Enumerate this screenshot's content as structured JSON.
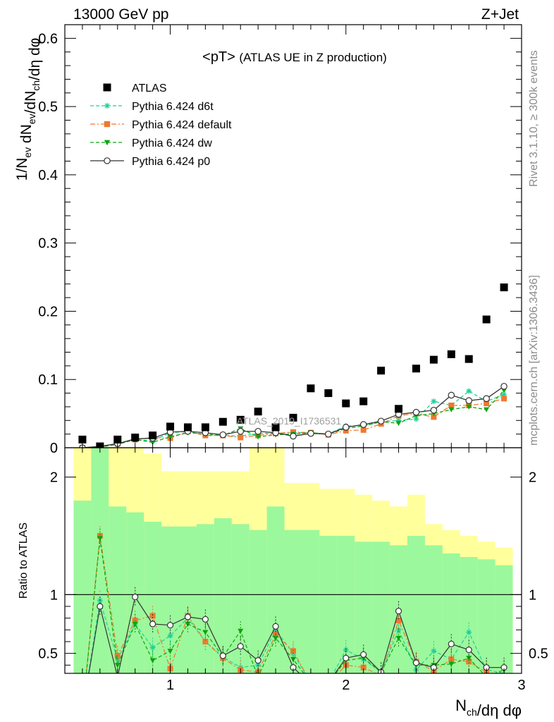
{
  "header": {
    "left_title": "13000 GeV pp",
    "right_title": "Z+Jet"
  },
  "side_labels": {
    "rivet": "Rivet 3.1.10, ≥ 300k events",
    "mcplots": "mcplots.cern.ch [arXiv:1306.3436]"
  },
  "watermark": "ATLAS_2019_I1736531",
  "chart_data": [
    {
      "type": "scatter",
      "panel": "main",
      "title": "<pT> (ATLAS UE in Z production)",
      "xlabel": "N_ch/dη dφ",
      "ylabel": "1/N_ev dN_ev/dN_ch/dη dφ",
      "xlim": [
        0.4,
        3.0
      ],
      "ylim": [
        0,
        0.62
      ],
      "yticks": [
        0,
        0.1,
        0.2,
        0.3,
        0.4,
        0.5,
        0.6
      ],
      "ytick_labels": [
        "0",
        "0.1",
        "0.2",
        "0.3",
        "0.4",
        "0.5",
        "0.6"
      ],
      "grid": false,
      "legend_position": "top-left",
      "x": [
        0.5,
        0.6,
        0.7,
        0.8,
        0.9,
        1.0,
        1.1,
        1.2,
        1.3,
        1.4,
        1.5,
        1.6,
        1.7,
        1.8,
        1.9,
        2.0,
        2.1,
        2.2,
        2.3,
        2.4,
        2.5,
        2.6,
        2.7,
        2.8,
        2.9
      ],
      "series": [
        {
          "name": "ATLAS",
          "color": "#000000",
          "marker": "square",
          "line": "none",
          "values": [
            0.012,
            0.002,
            0.012,
            0.015,
            0.018,
            0.031,
            0.03,
            0.03,
            0.038,
            0.041,
            0.053,
            0.03,
            0.044,
            0.087,
            0.08,
            0.065,
            0.068,
            0.113,
            0.057,
            0.116,
            0.129,
            0.137,
            0.13,
            0.188,
            0.235
          ]
        },
        {
          "name": "Pythia 6.424 d6t",
          "color": "#1fcf9a",
          "marker": "star",
          "line": "dashed",
          "values": [
            0.0,
            0.001,
            0.005,
            0.012,
            0.01,
            0.022,
            0.024,
            0.018,
            0.018,
            0.017,
            0.021,
            0.021,
            0.022,
            0.022,
            0.02,
            0.032,
            0.032,
            0.038,
            0.04,
            0.042,
            0.068,
            0.062,
            0.083,
            0.068,
            0.078
          ]
        },
        {
          "name": "Pythia 6.424 default",
          "color": "#f07830",
          "marker": "square",
          "line": "dashdot",
          "values": [
            0.0,
            0.001,
            0.006,
            0.012,
            0.015,
            0.014,
            0.024,
            0.018,
            0.018,
            0.015,
            0.018,
            0.021,
            0.023,
            0.022,
            0.019,
            0.025,
            0.026,
            0.035,
            0.047,
            0.05,
            0.045,
            0.062,
            0.062,
            0.065,
            0.072
          ]
        },
        {
          "name": "Pythia 6.424 dw",
          "color": "#0ca60c",
          "marker": "triangle-down",
          "line": "dashed",
          "values": [
            0.0,
            0.001,
            0.005,
            0.012,
            0.008,
            0.016,
            0.022,
            0.02,
            0.018,
            0.028,
            0.016,
            0.019,
            0.02,
            0.022,
            0.02,
            0.028,
            0.032,
            0.038,
            0.036,
            0.047,
            0.05,
            0.056,
            0.06,
            0.056,
            0.084
          ]
        },
        {
          "name": "Pythia 6.424 p0",
          "color": "#333333",
          "marker": "open-circle",
          "line": "solid",
          "values": [
            0.0,
            0.002,
            0.006,
            0.013,
            0.014,
            0.023,
            0.024,
            0.022,
            0.019,
            0.024,
            0.024,
            0.022,
            0.017,
            0.021,
            0.02,
            0.03,
            0.034,
            0.039,
            0.049,
            0.052,
            0.055,
            0.077,
            0.069,
            0.072,
            0.09
          ]
        }
      ]
    },
    {
      "type": "line",
      "panel": "ratio",
      "xlabel": "N_ch/dη dφ",
      "ylabel": "Ratio to ATLAS",
      "xlim": [
        0.4,
        3.0
      ],
      "ylim": [
        0.33,
        2.25
      ],
      "yticks": [
        0.5,
        1,
        2
      ],
      "ytick_labels": [
        "0.5",
        "1",
        "2"
      ],
      "xticks": [
        1,
        2,
        3
      ],
      "xtick_labels": [
        "1",
        "2",
        "3"
      ],
      "reference_line": 1,
      "bands": {
        "bin_edges": [
          0.45,
          0.55,
          0.65,
          0.75,
          0.85,
          0.95,
          1.05,
          1.15,
          1.25,
          1.35,
          1.45,
          1.55,
          1.65,
          1.75,
          1.85,
          1.95,
          2.05,
          2.15,
          2.25,
          2.35,
          2.45,
          2.55,
          2.65,
          2.75,
          2.85,
          2.95
        ],
        "stat": {
          "color": "#9cf89c",
          "lower": [
            0.0,
            0.0,
            0.0,
            0.0,
            0.0,
            0.0,
            0.0,
            0.0,
            0.0,
            0.0,
            0.0,
            0.0,
            0.0,
            0.0,
            0.0,
            0.0,
            0.0,
            0.0,
            0.0,
            0.0,
            0.0,
            0.0,
            0.0,
            0.0,
            0.0
          ],
          "upper": [
            1.8,
            2.25,
            1.75,
            1.7,
            1.62,
            1.58,
            1.58,
            1.6,
            1.65,
            1.6,
            1.55,
            1.75,
            1.55,
            1.55,
            1.5,
            1.5,
            1.45,
            1.45,
            1.42,
            1.5,
            1.42,
            1.35,
            1.32,
            1.3,
            1.25
          ]
        },
        "total": {
          "color": "#ffff9c",
          "lower": [
            0.0,
            0.0,
            0.0,
            0.0,
            0.0,
            0.0,
            0.55,
            0.55,
            0.5,
            0.55,
            0.65,
            0.0,
            0.5,
            0.55,
            0.0,
            0.55,
            0.6,
            0.4,
            0.6,
            0.4,
            0.65,
            0.65,
            0.65,
            0.7,
            0.75
          ],
          "upper": [
            2.25,
            2.25,
            2.25,
            2.25,
            2.2,
            2.05,
            2.05,
            2.05,
            2.05,
            2.05,
            2.25,
            2.25,
            1.95,
            1.95,
            1.9,
            1.9,
            1.85,
            1.8,
            1.75,
            1.85,
            1.6,
            1.55,
            1.5,
            1.45,
            1.4
          ]
        }
      },
      "series": [
        {
          "name": "Pythia 6.424 d6t",
          "values": [
            0.0,
            0.95,
            0.45,
            0.75,
            0.55,
            0.65,
            0.8,
            0.6,
            0.47,
            0.38,
            0.4,
            0.7,
            0.5,
            0.25,
            0.25,
            0.53,
            0.45,
            0.34,
            0.7,
            0.36,
            0.52,
            0.45,
            0.68,
            0.36,
            0.33
          ]
        },
        {
          "name": "Pythia 6.424 default",
          "values": [
            0.0,
            1.5,
            0.48,
            0.78,
            0.82,
            0.37,
            0.82,
            0.6,
            0.46,
            0.36,
            0.34,
            0.66,
            0.52,
            0.25,
            0.24,
            0.4,
            0.38,
            0.31,
            0.78,
            0.43,
            0.35,
            0.45,
            0.43,
            0.34,
            0.31
          ]
        },
        {
          "name": "Pythia 6.424 dw",
          "values": [
            0.0,
            1.48,
            0.4,
            0.75,
            0.44,
            0.52,
            0.75,
            0.68,
            0.47,
            0.69,
            0.3,
            0.63,
            0.45,
            0.25,
            0.25,
            0.44,
            0.46,
            0.34,
            0.63,
            0.4,
            0.4,
            0.41,
            0.46,
            0.3,
            0.36
          ]
        },
        {
          "name": "Pythia 6.424 p0",
          "values": [
            0.0,
            0.9,
            0.3,
            0.98,
            0.75,
            0.74,
            0.81,
            0.79,
            0.48,
            0.56,
            0.44,
            0.73,
            0.38,
            0.24,
            0.25,
            0.46,
            0.49,
            0.34,
            0.86,
            0.42,
            0.38,
            0.58,
            0.53,
            0.38,
            0.38
          ]
        }
      ]
    }
  ]
}
